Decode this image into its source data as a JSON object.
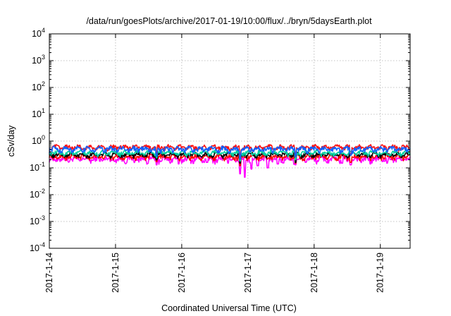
{
  "chart_data": {
    "type": "line",
    "title": "/data/run/goesPlots/archive/2017-01-19/10:00/flux/../bryn/5daysEarth.plot",
    "xlabel": "Coordinated Universal Time (UTC)",
    "ylabel": "cSv/day",
    "yscale": "log",
    "ylim": [
      0.0001,
      10000
    ],
    "xlim_days": [
      0,
      5.45
    ],
    "x_ticks": [
      {
        "day": 0,
        "label": "2017-1-14"
      },
      {
        "day": 1,
        "label": "2017-1-15"
      },
      {
        "day": 2,
        "label": "2017-1-16"
      },
      {
        "day": 3,
        "label": "2017-1-17"
      },
      {
        "day": 4,
        "label": "2017-1-18"
      },
      {
        "day": 5,
        "label": "2017-1-19"
      }
    ],
    "y_ticks": [
      {
        "exp": -4,
        "base": "10",
        "sup": "-4"
      },
      {
        "exp": -3,
        "base": "10",
        "sup": "-3"
      },
      {
        "exp": -2,
        "base": "10",
        "sup": "-2"
      },
      {
        "exp": -1,
        "base": "10",
        "sup": "-1"
      },
      {
        "exp": 0,
        "base": "10",
        "sup": "0"
      },
      {
        "exp": 1,
        "base": "10",
        "sup": "1"
      },
      {
        "exp": 2,
        "base": "10",
        "sup": "2"
      },
      {
        "exp": 3,
        "base": "10",
        "sup": "3"
      },
      {
        "exp": 4,
        "base": "10",
        "sup": "4"
      }
    ],
    "grid": true,
    "legend": "none",
    "series": [
      {
        "color": "#ff00ff",
        "base": 0.21,
        "amp": 0.05,
        "dips": [
          [
            0.0,
            0.21
          ],
          [
            0.45,
            0.2
          ],
          [
            1.62,
            0.13
          ],
          [
            1.95,
            0.14
          ],
          [
            2.38,
            0.16
          ],
          [
            2.7,
            0.15
          ],
          [
            2.88,
            0.06
          ],
          [
            2.95,
            0.045
          ],
          [
            3.05,
            0.09
          ],
          [
            3.15,
            0.12
          ],
          [
            3.3,
            0.1
          ],
          [
            3.45,
            0.14
          ],
          [
            3.72,
            0.13
          ],
          [
            4.42,
            0.15
          ],
          [
            4.55,
            0.13
          ],
          [
            4.85,
            0.14
          ],
          [
            5.1,
            0.15
          ]
        ]
      },
      {
        "color": "#ff0000",
        "base": 0.26,
        "amp": 0.05,
        "dips": [
          [
            1.62,
            0.17
          ],
          [
            2.88,
            0.12
          ],
          [
            3.72,
            0.15
          ],
          [
            4.55,
            0.16
          ]
        ]
      },
      {
        "color": "#000000",
        "base": 0.31,
        "amp": 0.05,
        "dips": [
          [
            1.62,
            0.2
          ],
          [
            2.88,
            0.15
          ],
          [
            3.72,
            0.16
          ]
        ]
      },
      {
        "color": "#00d0a0",
        "base": 0.36,
        "amp": 0.06,
        "dips": [
          [
            1.62,
            0.24
          ],
          [
            2.88,
            0.18
          ],
          [
            3.72,
            0.2
          ]
        ]
      },
      {
        "color": "#ff1010",
        "base": 0.58,
        "amp": 0.1,
        "dips": [
          [
            1.62,
            0.32
          ],
          [
            2.88,
            0.28
          ],
          [
            3.72,
            0.3
          ],
          [
            4.55,
            0.34
          ]
        ]
      },
      {
        "color": "#1060ff",
        "base": 0.5,
        "amp": 0.1,
        "dips": [
          [
            1.62,
            0.27
          ],
          [
            2.88,
            0.22
          ],
          [
            3.72,
            0.25
          ],
          [
            4.55,
            0.3
          ]
        ]
      }
    ]
  }
}
